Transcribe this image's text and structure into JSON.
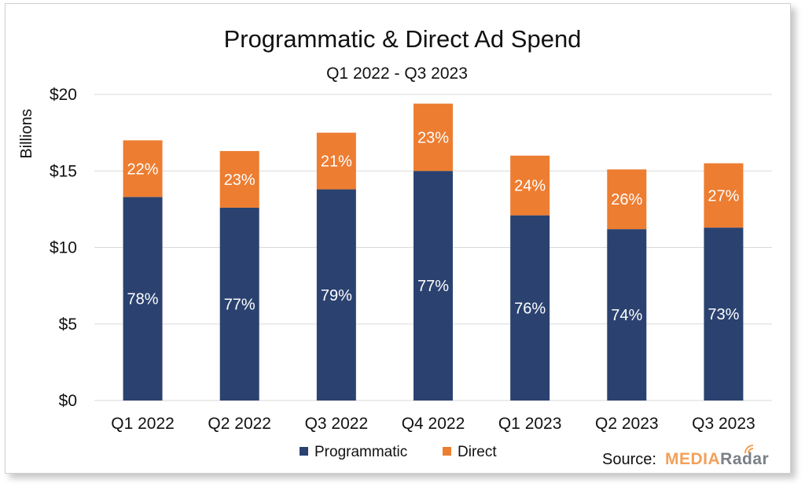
{
  "chart_data": {
    "type": "bar",
    "stacked": true,
    "title": "Programmatic & Direct Ad Spend",
    "subtitle": "Q1 2022 - Q3 2023",
    "ylabel": "Billions",
    "ylim": [
      0,
      20
    ],
    "yticks": [
      0,
      5,
      10,
      15,
      20
    ],
    "ytick_labels": [
      "$0",
      "$5",
      "$10",
      "$15",
      "$20"
    ],
    "grid": true,
    "legend_position": "bottom",
    "categories": [
      "Q1 2022",
      "Q2 2022",
      "Q3 2022",
      "Q4 2022",
      "Q1 2023",
      "Q2 2023",
      "Q3 2023"
    ],
    "series": [
      {
        "name": "Programmatic",
        "color": "#2b4270",
        "values": [
          13.3,
          12.6,
          13.8,
          15.0,
          12.1,
          11.2,
          11.3
        ],
        "labels": [
          "78%",
          "77%",
          "79%",
          "77%",
          "76%",
          "74%",
          "73%"
        ]
      },
      {
        "name": "Direct",
        "color": "#ed7d31",
        "values": [
          3.7,
          3.7,
          3.7,
          4.4,
          3.9,
          3.9,
          4.2
        ],
        "labels": [
          "22%",
          "23%",
          "21%",
          "23%",
          "24%",
          "26%",
          "27%"
        ]
      }
    ]
  },
  "source": {
    "label": "Source:",
    "logo_part1": "MEDIA",
    "logo_part2": "Radar"
  }
}
